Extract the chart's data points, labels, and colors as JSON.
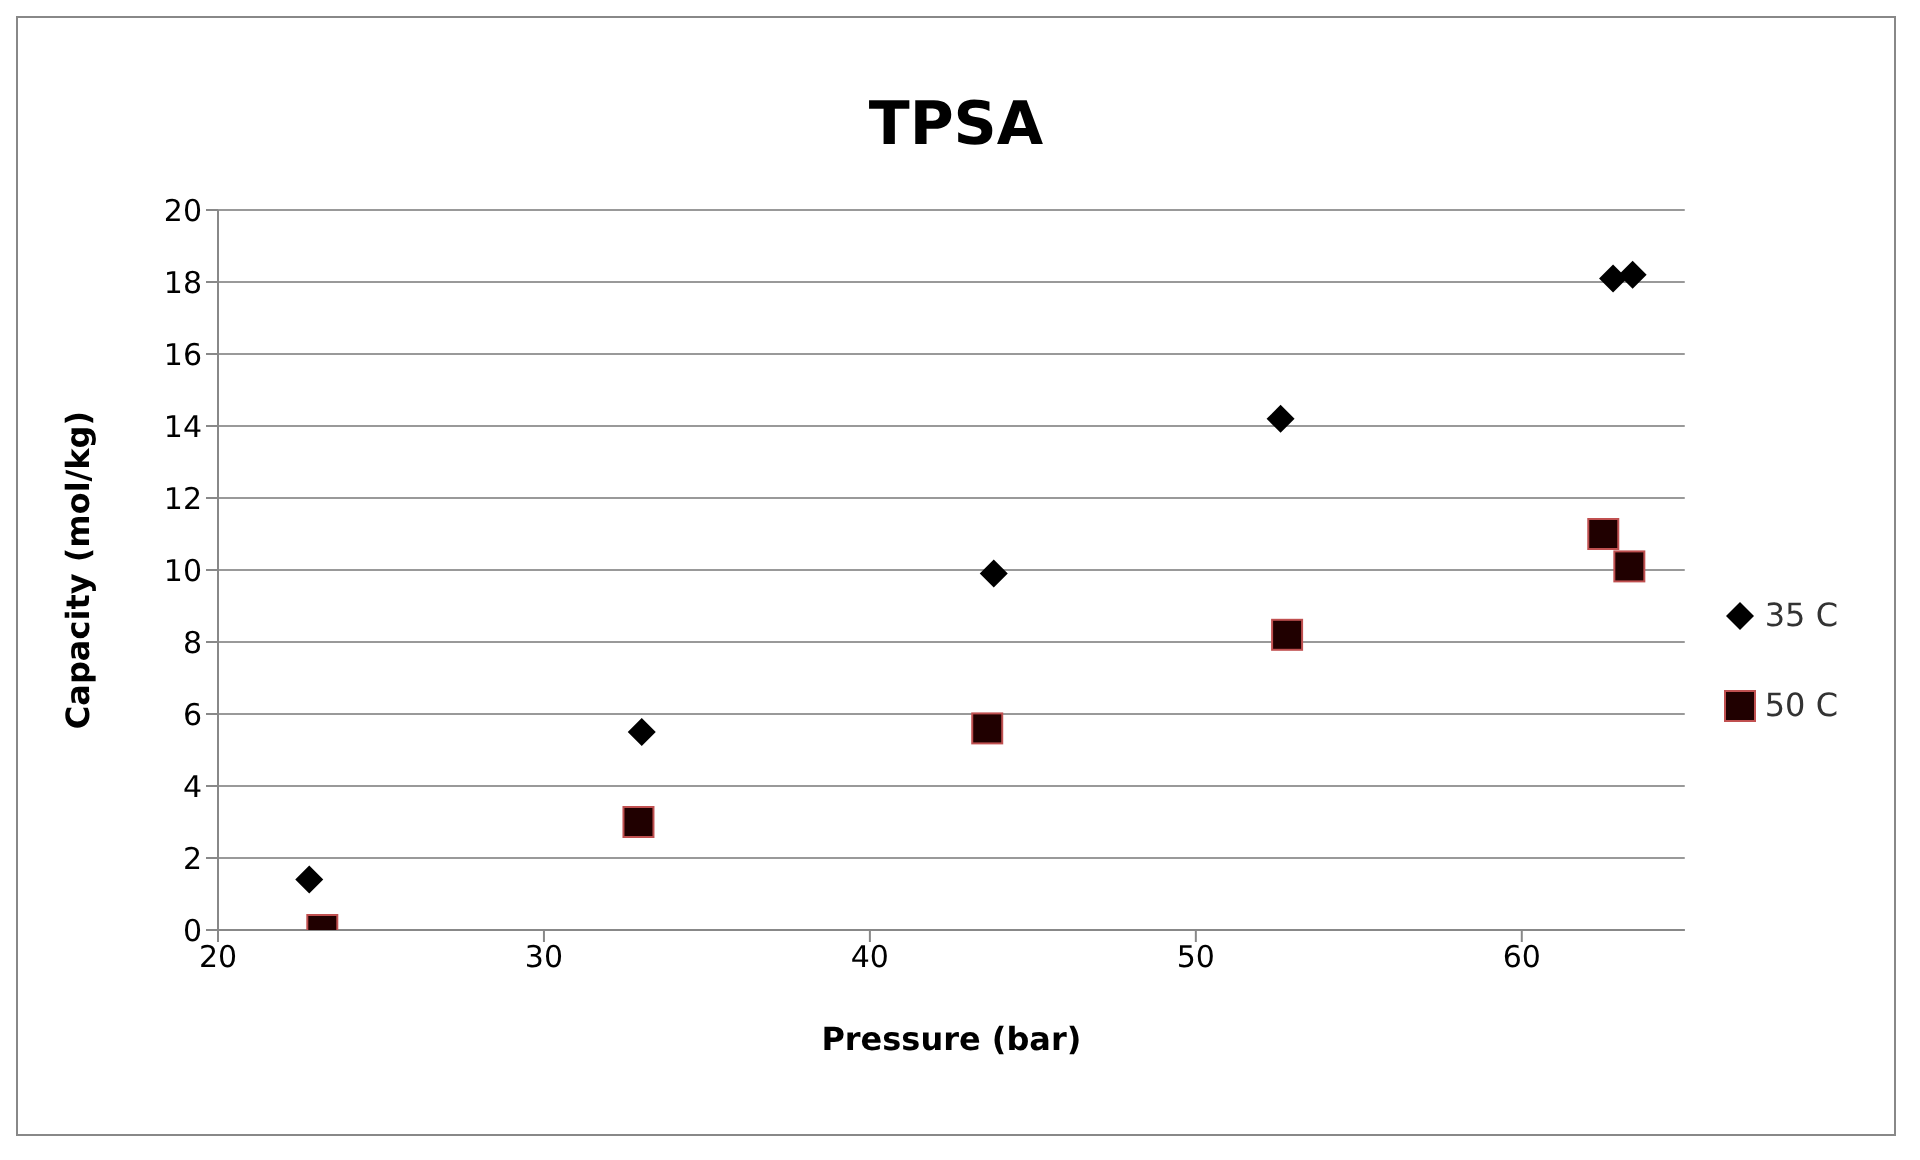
{
  "chart_data": {
    "type": "scatter",
    "title": "TPSA",
    "xlabel": "Pressure (bar)",
    "ylabel": "Capacity (mol/kg)",
    "xlim": [
      20,
      65
    ],
    "xticks": [
      20,
      30,
      40,
      50,
      60
    ],
    "ylim": [
      0,
      20
    ],
    "yticks": [
      0,
      2,
      4,
      6,
      8,
      10,
      12,
      14,
      16,
      18,
      20
    ],
    "grid": "y",
    "legend": "right",
    "series": [
      {
        "name": "35 C",
        "color": "#000000",
        "marker": "diamond",
        "x": [
          22.8,
          33.0,
          43.8,
          52.6,
          62.8,
          63.4
        ],
        "values": [
          1.4,
          5.5,
          9.9,
          14.2,
          18.1,
          18.2
        ]
      },
      {
        "name": "50 C",
        "color": "#200000",
        "marker": "square",
        "x": [
          23.2,
          32.9,
          43.6,
          52.8,
          62.5,
          63.3
        ],
        "values": [
          0,
          3.0,
          5.6,
          8.2,
          11.0,
          10.1
        ]
      }
    ]
  }
}
